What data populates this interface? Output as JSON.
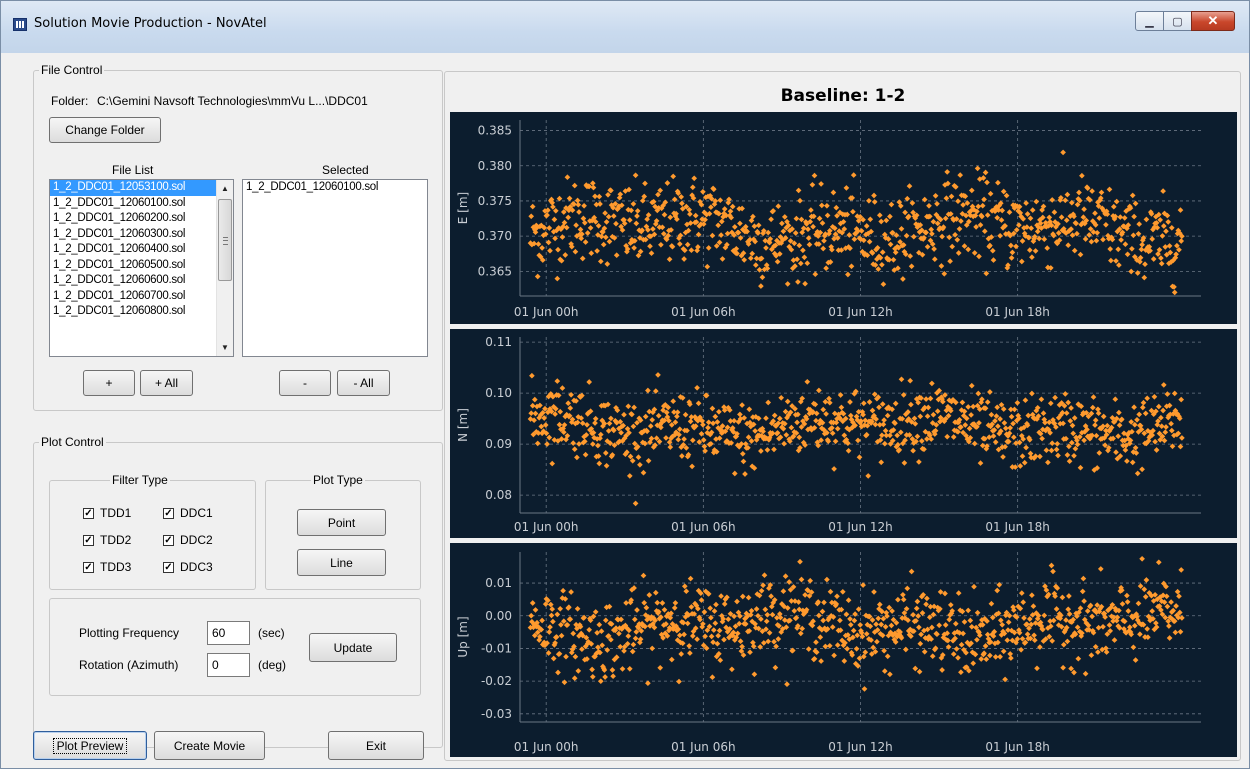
{
  "window": {
    "title": "Solution Movie Production - NovAtel"
  },
  "file_control": {
    "group_label": "File Control",
    "folder_label": "Folder:",
    "folder_path": "C:\\Gemini Navsoft Technologies\\mmVu L...\\DDC01",
    "change_folder": "Change Folder",
    "file_list_label": "File List",
    "selected_label": "Selected",
    "files": [
      "1_2_DDC01_12053100.sol",
      "1_2_DDC01_12060100.sol",
      "1_2_DDC01_12060200.sol",
      "1_2_DDC01_12060300.sol",
      "1_2_DDC01_12060400.sol",
      "1_2_DDC01_12060500.sol",
      "1_2_DDC01_12060600.sol",
      "1_2_DDC01_12060700.sol",
      "1_2_DDC01_12060800.sol"
    ],
    "selected_files": [
      "1_2_DDC01_12060100.sol"
    ],
    "add": "+",
    "add_all": "+ All",
    "remove": "-",
    "remove_all": "- All"
  },
  "plot_control": {
    "group_label": "Plot Control",
    "filter_type_label": "Filter Type",
    "filters": [
      {
        "label": "TDD1",
        "checked": true
      },
      {
        "label": "DDC1",
        "checked": true
      },
      {
        "label": "TDD2",
        "checked": true
      },
      {
        "label": "DDC2",
        "checked": true
      },
      {
        "label": "TDD3",
        "checked": true
      },
      {
        "label": "DDC3",
        "checked": true
      }
    ],
    "plot_type_label": "Plot Type",
    "point": "Point",
    "line": "Line",
    "freq_label": "Plotting Frequency",
    "freq_value": "60",
    "freq_unit": "(sec)",
    "rot_label": "Rotation (Azimuth)",
    "rot_value": "0",
    "rot_unit": "(deg)",
    "update": "Update"
  },
  "footer": {
    "plot_preview": "Plot Preview",
    "create_movie": "Create Movie",
    "exit": "Exit"
  },
  "colors": {
    "plot_bg": "#0c1d2e",
    "points": "#ff9a2e",
    "grid": "#6a7684",
    "text": "#c9ced4"
  },
  "chart_data": [
    {
      "type": "scatter",
      "title": "Baseline: 1-2",
      "ylabel": "E [m]",
      "ylim": [
        0.3615,
        0.3865
      ],
      "yticks": [
        "0.365",
        "0.370",
        "0.375",
        "0.380",
        "0.385"
      ],
      "xticks": [
        "01 Jun 00h",
        "01 Jun 06h",
        "01 Jun 12h",
        "01 Jun 18h"
      ],
      "xlim_hours": [
        -1,
        25
      ],
      "baseline": 0.371,
      "spread": 0.0035
    },
    {
      "type": "scatter",
      "ylabel": "N [m]",
      "ylim": [
        0.0765,
        0.111
      ],
      "yticks": [
        "0.08",
        "0.09",
        "0.10",
        "0.11"
      ],
      "xticks": [
        "01 Jun 00h",
        "01 Jun 06h",
        "01 Jun 12h",
        "01 Jun 18h"
      ],
      "xlim_hours": [
        -1,
        25
      ],
      "baseline": 0.0935,
      "spread": 0.004
    },
    {
      "type": "scatter",
      "ylabel": "Up [m]",
      "ylim": [
        -0.0325,
        0.0195
      ],
      "yticks": [
        "0.01",
        "0.00",
        "-0.01",
        "-0.02",
        "-0.03"
      ],
      "xticks": [
        "01 Jun 00h",
        "01 Jun 06h",
        "01 Jun 12h",
        "01 Jun 18h"
      ],
      "xlim_hours": [
        -1,
        25
      ],
      "baseline": -0.003,
      "spread": 0.007
    }
  ]
}
